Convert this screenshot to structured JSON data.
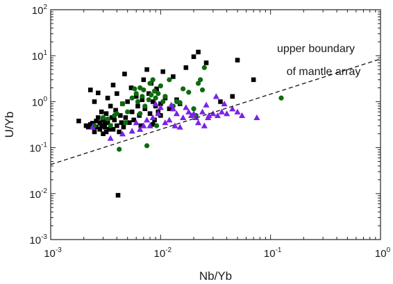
{
  "chart_data": {
    "type": "scatter",
    "title": "",
    "xlabel": "Nb/Yb",
    "ylabel": "U/Yb",
    "x_scale": "log",
    "y_scale": "log",
    "xlim": [
      0.001,
      1
    ],
    "ylim": [
      0.001,
      100
    ],
    "grid": false,
    "x_ticks": [
      {
        "value": 0.001,
        "base": "10",
        "exp": "-3"
      },
      {
        "value": 0.01,
        "base": "10",
        "exp": "-2"
      },
      {
        "value": 0.1,
        "base": "10",
        "exp": "-1"
      },
      {
        "value": 1,
        "base": "10",
        "exp": "0"
      }
    ],
    "y_ticks": [
      {
        "value": 0.001,
        "base": "10",
        "exp": "-3"
      },
      {
        "value": 0.01,
        "base": "10",
        "exp": "-2"
      },
      {
        "value": 0.1,
        "base": "10",
        "exp": "-1"
      },
      {
        "value": 1,
        "base": "10",
        "exp": "0"
      },
      {
        "value": 10,
        "base": "10",
        "exp": "1"
      },
      {
        "value": 100,
        "base": "10",
        "exp": "2"
      }
    ],
    "reference_line": {
      "label_lines": [
        "upper boundary",
        "of mantle array"
      ],
      "style": "dashed",
      "points": [
        [
          0.001,
          0.043
        ],
        [
          1,
          8.5
        ]
      ]
    },
    "series": [
      {
        "marker": "square",
        "color": "#000000",
        "points": [
          [
            0.0018,
            0.38
          ],
          [
            0.0021,
            0.3
          ],
          [
            0.0022,
            0.28
          ],
          [
            0.0023,
            1.8
          ],
          [
            0.0023,
            0.32
          ],
          [
            0.0024,
            0.34
          ],
          [
            0.0025,
            0.22
          ],
          [
            0.0025,
            1.0
          ],
          [
            0.0026,
            0.38
          ],
          [
            0.0026,
            0.28
          ],
          [
            0.0027,
            1.55
          ],
          [
            0.0027,
            0.45
          ],
          [
            0.0028,
            0.25
          ],
          [
            0.0028,
            0.35
          ],
          [
            0.0029,
            0.6
          ],
          [
            0.0029,
            0.3
          ],
          [
            0.003,
            0.2
          ],
          [
            0.003,
            0.4
          ],
          [
            0.0031,
            0.28
          ],
          [
            0.0031,
            0.33
          ],
          [
            0.0032,
            0.55
          ],
          [
            0.0032,
            0.22
          ],
          [
            0.0033,
            1.2
          ],
          [
            0.0033,
            0.35
          ],
          [
            0.0034,
            0.25
          ],
          [
            0.0035,
            0.8
          ],
          [
            0.0035,
            0.3
          ],
          [
            0.0036,
            0.45
          ],
          [
            0.0037,
            2.3
          ],
          [
            0.0037,
            0.25
          ],
          [
            0.0038,
            0.4
          ],
          [
            0.0039,
            0.65
          ],
          [
            0.004,
            0.3
          ],
          [
            0.004,
            1.5
          ],
          [
            0.0041,
            0.0092
          ],
          [
            0.0042,
            0.22
          ],
          [
            0.0043,
            0.5
          ],
          [
            0.0044,
            0.35
          ],
          [
            0.0045,
            0.9
          ],
          [
            0.0046,
            0.28
          ],
          [
            0.0047,
            4.0
          ],
          [
            0.0048,
            0.45
          ],
          [
            0.005,
            1.0
          ],
          [
            0.0052,
            0.35
          ],
          [
            0.0054,
            2.0
          ],
          [
            0.0055,
            0.6
          ],
          [
            0.0057,
            0.4
          ],
          [
            0.006,
            1.3
          ],
          [
            0.0062,
            0.8
          ],
          [
            0.0064,
            0.5
          ],
          [
            0.0066,
            0.3
          ],
          [
            0.0068,
            1.1
          ],
          [
            0.007,
            3.0
          ],
          [
            0.0072,
            0.7
          ],
          [
            0.0075,
            5.0
          ],
          [
            0.0078,
            1.5
          ],
          [
            0.008,
            0.55
          ],
          [
            0.0082,
            2.5
          ],
          [
            0.0085,
            1.0
          ],
          [
            0.0088,
            0.4
          ],
          [
            0.009,
            0.8
          ],
          [
            0.0092,
            1.9
          ],
          [
            0.0095,
            0.6
          ],
          [
            0.01,
            0.9
          ],
          [
            0.0105,
            4.5
          ],
          [
            0.011,
            1.2
          ],
          [
            0.012,
            0.7
          ],
          [
            0.013,
            3.5
          ],
          [
            0.014,
            1.1
          ],
          [
            0.015,
            0.9
          ],
          [
            0.017,
            5.5
          ],
          [
            0.02,
            9.5
          ],
          [
            0.022,
            12.0
          ],
          [
            0.026,
            7.0
          ],
          [
            0.035,
            1.0
          ],
          [
            0.045,
            1.3
          ],
          [
            0.05,
            8.0
          ],
          [
            0.07,
            3.0
          ],
          [
            0.01,
            0.5
          ],
          [
            0.0085,
            0.32
          ]
        ]
      },
      {
        "marker": "circle",
        "color": "#0d6b0d",
        "points": [
          [
            0.0025,
            0.3
          ],
          [
            0.003,
            0.45
          ],
          [
            0.0033,
            0.42
          ],
          [
            0.0035,
            0.3
          ],
          [
            0.0038,
            0.5
          ],
          [
            0.004,
            0.55
          ],
          [
            0.0042,
            0.092
          ],
          [
            0.0045,
            0.9
          ],
          [
            0.0048,
            0.35
          ],
          [
            0.005,
            0.6
          ],
          [
            0.0055,
            1.2
          ],
          [
            0.0058,
            1.9
          ],
          [
            0.006,
            1.5
          ],
          [
            0.0062,
            1.0
          ],
          [
            0.0065,
            2.0
          ],
          [
            0.0068,
            1.3
          ],
          [
            0.007,
            1.8
          ],
          [
            0.0072,
            0.8
          ],
          [
            0.0075,
            0.11
          ],
          [
            0.0078,
            1.1
          ],
          [
            0.008,
            2.5
          ],
          [
            0.0082,
            1.4
          ],
          [
            0.0085,
            3.0
          ],
          [
            0.0088,
            1.7
          ],
          [
            0.009,
            1.2
          ],
          [
            0.0095,
            1.5
          ],
          [
            0.01,
            2.2
          ],
          [
            0.0105,
            1.0
          ],
          [
            0.011,
            1.3
          ],
          [
            0.012,
            3.0
          ],
          [
            0.013,
            0.8
          ],
          [
            0.014,
            1.0
          ],
          [
            0.015,
            0.95
          ],
          [
            0.016,
            1.9
          ],
          [
            0.018,
            1.6
          ],
          [
            0.02,
            0.7
          ],
          [
            0.021,
            0.5
          ],
          [
            0.022,
            2.5
          ],
          [
            0.023,
            3.0
          ],
          [
            0.024,
            1.8
          ],
          [
            0.025,
            5.5
          ],
          [
            0.125,
            1.2
          ],
          [
            0.0065,
            0.55
          ],
          [
            0.0092,
            0.3
          ]
        ]
      },
      {
        "marker": "triangle",
        "color": "#7a22e8",
        "points": [
          [
            0.0024,
            0.28
          ],
          [
            0.0035,
            0.16
          ],
          [
            0.0045,
            0.2
          ],
          [
            0.0055,
            0.23
          ],
          [
            0.006,
            0.35
          ],
          [
            0.0065,
            0.25
          ],
          [
            0.007,
            0.3
          ],
          [
            0.0075,
            0.4
          ],
          [
            0.008,
            0.3
          ],
          [
            0.0085,
            0.45
          ],
          [
            0.009,
            0.9
          ],
          [
            0.0095,
            0.55
          ],
          [
            0.01,
            0.75
          ],
          [
            0.011,
            0.35
          ],
          [
            0.012,
            0.4
          ],
          [
            0.013,
            0.7
          ],
          [
            0.0135,
            0.3
          ],
          [
            0.014,
            0.55
          ],
          [
            0.015,
            0.28
          ],
          [
            0.016,
            0.45
          ],
          [
            0.017,
            0.75
          ],
          [
            0.018,
            0.6
          ],
          [
            0.019,
            0.5
          ],
          [
            0.02,
            0.55
          ],
          [
            0.021,
            0.45
          ],
          [
            0.022,
            0.35
          ],
          [
            0.024,
            0.6
          ],
          [
            0.025,
            0.3
          ],
          [
            0.026,
            0.85
          ],
          [
            0.027,
            0.45
          ],
          [
            0.03,
            0.55
          ],
          [
            0.032,
            1.3
          ],
          [
            0.033,
            0.5
          ],
          [
            0.036,
            0.6
          ],
          [
            0.038,
            0.9
          ],
          [
            0.04,
            0.55
          ],
          [
            0.045,
            0.7
          ],
          [
            0.05,
            0.6
          ],
          [
            0.055,
            0.5
          ],
          [
            0.075,
            0.45
          ],
          [
            0.0275,
            0.5
          ],
          [
            0.0125,
            0.85
          ]
        ]
      }
    ]
  }
}
